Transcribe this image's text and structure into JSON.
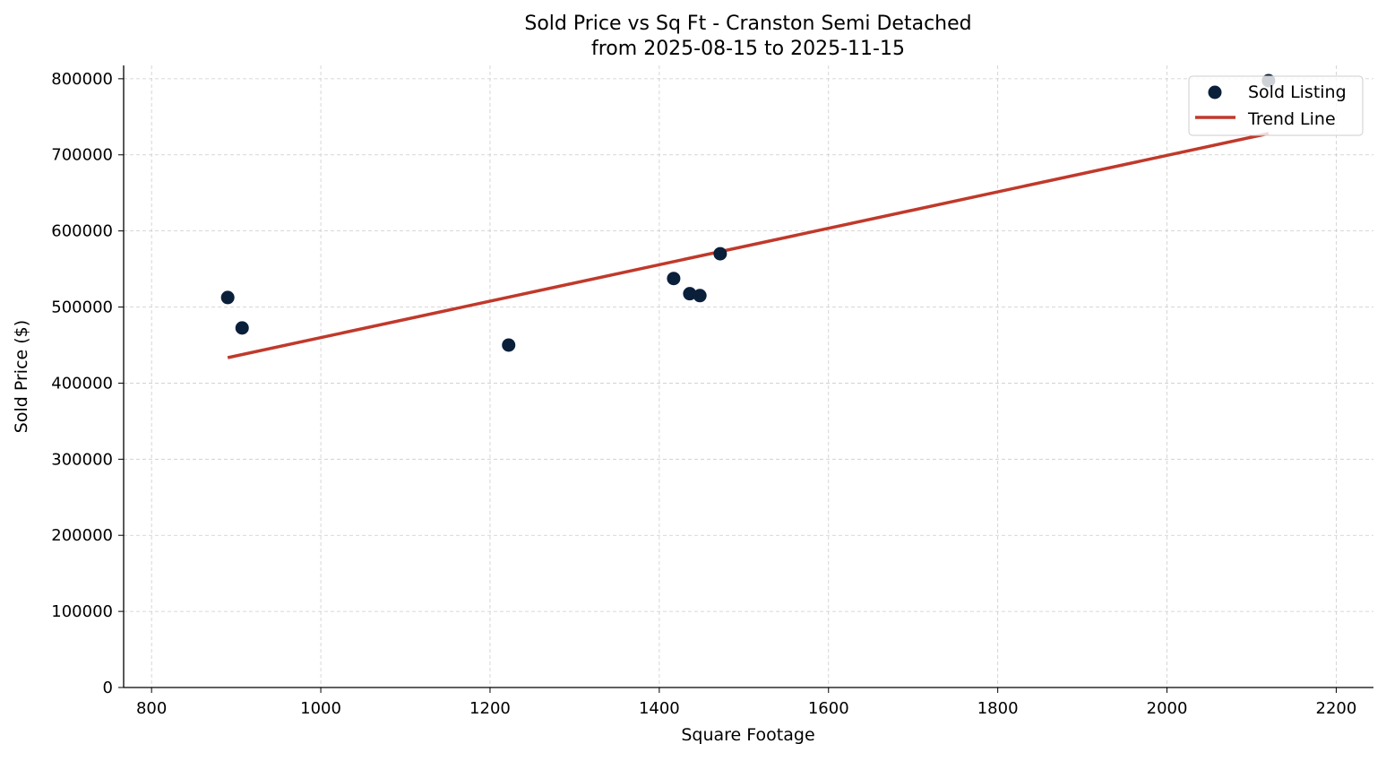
{
  "chart_data": {
    "type": "scatter",
    "title": "Sold Price vs Sq Ft - Cranston Semi Detached",
    "subtitle": "from 2025-08-15 to 2025-11-15",
    "xlabel": "Square Footage",
    "ylabel": "Sold Price ($)",
    "xlim": [
      767,
      2244
    ],
    "ylim": [
      0,
      817500
    ],
    "xticks": [
      800,
      1000,
      1200,
      1400,
      1600,
      1800,
      2000,
      2200
    ],
    "yticks": [
      0,
      100000,
      200000,
      300000,
      400000,
      500000,
      600000,
      700000,
      800000
    ],
    "grid": true,
    "legend_position": "top-right",
    "series": [
      {
        "name": "Sold Listing",
        "kind": "scatter",
        "color": "#0a1f3a",
        "points": [
          {
            "x": 890,
            "y": 512500
          },
          {
            "x": 907,
            "y": 472500
          },
          {
            "x": 1222,
            "y": 450000
          },
          {
            "x": 1417,
            "y": 537500
          },
          {
            "x": 1436,
            "y": 517500
          },
          {
            "x": 1448,
            "y": 515000
          },
          {
            "x": 1472,
            "y": 570000
          },
          {
            "x": 2120,
            "y": 797500
          }
        ]
      },
      {
        "name": "Trend Line",
        "kind": "line",
        "color": "#c0392b",
        "points": [
          {
            "x": 890,
            "y": 433500
          },
          {
            "x": 2120,
            "y": 728000
          }
        ]
      }
    ]
  }
}
